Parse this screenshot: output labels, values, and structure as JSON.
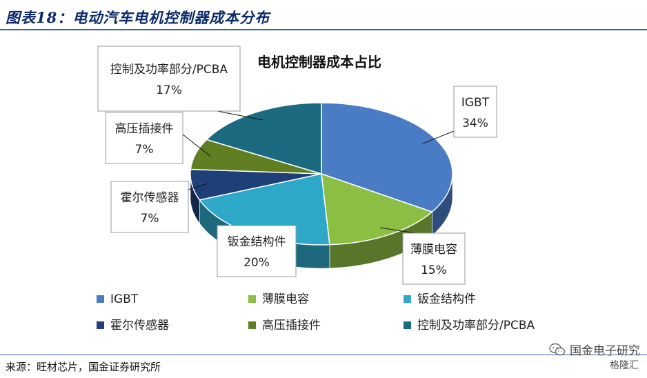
{
  "figure": {
    "title": "图表18：电动汽车电机控制器成本分布",
    "source": "来源：旺材芯片，国金证券研究所",
    "brand": "国金电子研究",
    "watermark": "格隆汇"
  },
  "chart_data": {
    "type": "pie",
    "title": "电机控制器成本占比",
    "three_d": true,
    "legend_position": "bottom",
    "slices": [
      {
        "label": "IGBT",
        "value": 34,
        "pct_label": "34%",
        "color": "#4a7cc6"
      },
      {
        "label": "薄膜电容",
        "value": 15,
        "pct_label": "15%",
        "color": "#8cbe44"
      },
      {
        "label": "钣金结构件",
        "value": 20,
        "pct_label": "20%",
        "color": "#2ea8c8"
      },
      {
        "label": "霍尔传感器",
        "value": 7,
        "pct_label": "7%",
        "color": "#1f3f78"
      },
      {
        "label": "高压插接件",
        "value": 7,
        "pct_label": "7%",
        "color": "#5f7f22"
      },
      {
        "label": "控制及功率部分/PCBA",
        "value": 17,
        "pct_label": "17%",
        "color": "#1b6a80"
      }
    ]
  }
}
